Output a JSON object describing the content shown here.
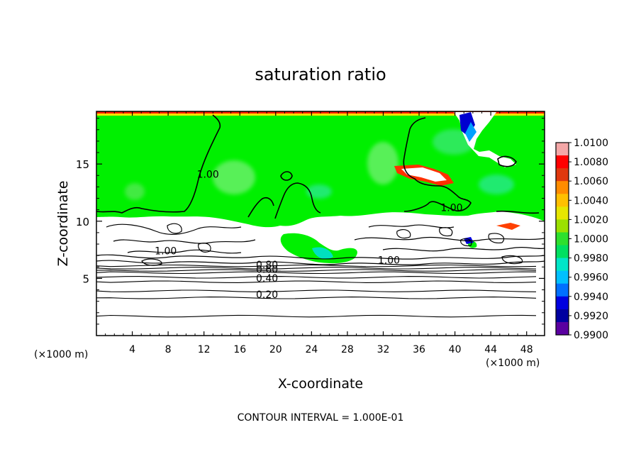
{
  "chart_data": {
    "type": "heatmap",
    "title": "saturation ratio",
    "xlabel": "X-coordinate",
    "ylabel": "Z-coordinate",
    "x_unit_label": "(×1000 m)",
    "z_unit_label": "(×1000 m)",
    "footer": "CONTOUR INTERVAL = 1.000E-01",
    "xlim": [
      0,
      50
    ],
    "ylim": [
      0,
      19.6
    ],
    "x_ticks": [
      4,
      8,
      12,
      16,
      20,
      24,
      28,
      32,
      36,
      40,
      44,
      48
    ],
    "x_tick_labels": [
      "4",
      "8",
      "12",
      "16",
      "20",
      "24",
      "28",
      "32",
      "36",
      "40",
      "44",
      "48"
    ],
    "y_ticks": [
      5,
      10,
      15
    ],
    "y_tick_labels": [
      "5",
      "10",
      "15"
    ],
    "colorbar": {
      "min": 0.99,
      "max": 1.01,
      "labels": [
        "1.0100",
        "1.0080",
        "1.0060",
        "1.0040",
        "1.0020",
        "1.0000",
        "0.9980",
        "0.9960",
        "0.9940",
        "0.9920",
        "0.9900"
      ],
      "colors": [
        "#f4a7a7",
        "#ff0000",
        "#e0380e",
        "#ff8c00",
        "#ffc000",
        "#e6e600",
        "#9be000",
        "#2ee02e",
        "#00e060",
        "#00e6c8",
        "#00c0ff",
        "#0070ff",
        "#0000e0",
        "#0000a0",
        "#5a00a0"
      ]
    },
    "contour_labels": [
      {
        "text": "1.00",
        "x": 11.2,
        "z": 13.8
      },
      {
        "text": "1.00",
        "x": 38.4,
        "z": 10.9
      },
      {
        "text": "1.00",
        "x": 6.5,
        "z": 7.1
      },
      {
        "text": "1.00",
        "x": 31.4,
        "z": 6.3
      },
      {
        "text": "0.80",
        "x": 17.8,
        "z": 5.9
      },
      {
        "text": "0.60",
        "x": 17.8,
        "z": 5.5
      },
      {
        "text": "0.40",
        "x": 17.8,
        "z": 4.7
      },
      {
        "text": "0.20",
        "x": 17.8,
        "z": 3.3
      }
    ],
    "horizontal_contours": [
      {
        "z": 1.7,
        "level": "0.10"
      },
      {
        "z": 3.3,
        "level": "0.20"
      },
      {
        "z": 3.9,
        "level": "0.30"
      },
      {
        "z": 4.7,
        "level": "0.40"
      },
      {
        "z": 5.1,
        "level": "0.50"
      },
      {
        "z": 5.5,
        "level": "0.60"
      },
      {
        "z": 5.7,
        "level": "0.70"
      },
      {
        "z": 5.9,
        "level": "0.80"
      },
      {
        "z": 6.1,
        "level": "0.90"
      }
    ]
  }
}
